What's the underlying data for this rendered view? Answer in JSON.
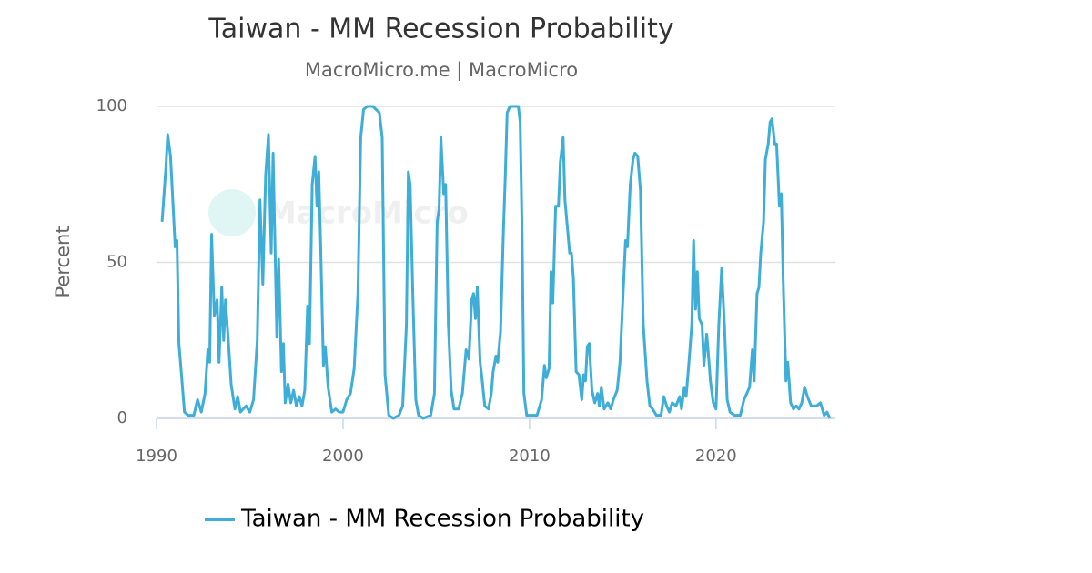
{
  "chart_data": {
    "type": "line",
    "title": "Taiwan - MM Recession Probability",
    "subtitle": "MacroMicro.me | MacroMicro",
    "watermark": "MacroMicro",
    "y_label": "Percent",
    "xlim": [
      1990,
      2026.4
    ],
    "xticks": [
      1990,
      2000,
      2010,
      2020
    ],
    "ylim": [
      0,
      100
    ],
    "yticks": [
      0,
      50,
      100
    ],
    "grid": true,
    "legend": "bottom",
    "series": [
      {
        "name": "Taiwan - MM Recession Probability",
        "color": "#3eaed8",
        "x": [
          1990.3,
          1990.5,
          1990.6,
          1990.75,
          1991.0,
          1991.1,
          1991.2,
          1991.35,
          1991.5,
          1991.7,
          1992.0,
          1992.2,
          1992.4,
          1992.6,
          1992.75,
          1992.85,
          1992.95,
          1993.1,
          1993.25,
          1993.35,
          1993.5,
          1993.6,
          1993.7,
          1993.85,
          1994.0,
          1994.2,
          1994.35,
          1994.5,
          1994.8,
          1995.0,
          1995.2,
          1995.4,
          1995.55,
          1995.7,
          1995.85,
          1996.0,
          1996.15,
          1996.25,
          1996.45,
          1996.55,
          1996.7,
          1996.8,
          1996.9,
          1997.05,
          1997.2,
          1997.35,
          1997.5,
          1997.65,
          1997.8,
          1997.95,
          1998.1,
          1998.2,
          1998.35,
          1998.5,
          1998.6,
          1998.7,
          1998.8,
          1998.95,
          1999.05,
          1999.2,
          1999.4,
          1999.6,
          1999.8,
          2000.0,
          2000.2,
          2000.4,
          2000.6,
          2000.8,
          2000.95,
          2001.1,
          2001.3,
          2001.6,
          2001.95,
          2002.1,
          2002.25,
          2002.45,
          2002.7,
          2003.0,
          2003.2,
          2003.4,
          2003.5,
          2003.6,
          2003.75,
          2003.9,
          2004.05,
          2004.3,
          2004.7,
          2004.9,
          2005.05,
          2005.15,
          2005.25,
          2005.4,
          2005.5,
          2005.65,
          2005.8,
          2005.95,
          2006.2,
          2006.4,
          2006.6,
          2006.75,
          2006.9,
          2007.0,
          2007.1,
          2007.2,
          2007.35,
          2007.45,
          2007.6,
          2007.8,
          2007.95,
          2008.05,
          2008.2,
          2008.3,
          2008.45,
          2008.6,
          2008.7,
          2008.8,
          2008.95,
          2009.4,
          2009.5,
          2009.6,
          2009.7,
          2009.85,
          2010.0,
          2010.4,
          2010.65,
          2010.8,
          2010.9,
          2011.05,
          2011.15,
          2011.25,
          2011.4,
          2011.55,
          2011.65,
          2011.8,
          2011.9,
          2012.05,
          2012.15,
          2012.25,
          2012.35,
          2012.5,
          2012.65,
          2012.8,
          2012.9,
          2013.0,
          2013.1,
          2013.2,
          2013.35,
          2013.5,
          2013.65,
          2013.75,
          2013.85,
          2014.0,
          2014.2,
          2014.35,
          2014.5,
          2014.7,
          2014.85,
          2015.0,
          2015.15,
          2015.25,
          2015.4,
          2015.55,
          2015.65,
          2015.8,
          2015.95,
          2016.1,
          2016.3,
          2016.45,
          2016.6,
          2016.8,
          2017.05,
          2017.2,
          2017.35,
          2017.5,
          2017.65,
          2017.85,
          2018.05,
          2018.15,
          2018.3,
          2018.4,
          2018.55,
          2018.7,
          2018.8,
          2018.9,
          2019.0,
          2019.1,
          2019.25,
          2019.35,
          2019.5,
          2019.6,
          2019.7,
          2019.85,
          2020.0,
          2020.15,
          2020.3,
          2020.45,
          2020.6,
          2020.75,
          2021.0,
          2021.3,
          2021.5,
          2021.65,
          2021.8,
          2021.95,
          2022.05,
          2022.2,
          2022.3,
          2022.4,
          2022.55,
          2022.65,
          2022.8,
          2022.9,
          2023.0,
          2023.15,
          2023.25,
          2023.4,
          2023.5,
          2023.6,
          2023.75,
          2023.85,
          2024.0,
          2024.15,
          2024.3,
          2024.45,
          2024.6,
          2024.75,
          2024.9,
          2025.1,
          2025.4,
          2025.6,
          2025.8,
          2025.95,
          2026.1
        ],
        "values": [
          63,
          80,
          91,
          84,
          55,
          57,
          24,
          13,
          2,
          1,
          1,
          6,
          2,
          8,
          22,
          18,
          59,
          33,
          38,
          18,
          42,
          25,
          38,
          25,
          11,
          3,
          7,
          2,
          4,
          2,
          6,
          25,
          70,
          43,
          78,
          91,
          53,
          85,
          26,
          51,
          15,
          24,
          5,
          11,
          5,
          9,
          4,
          7,
          4,
          9,
          36,
          24,
          75,
          84,
          68,
          79,
          55,
          17,
          23,
          10,
          2,
          3,
          2,
          2,
          6,
          8,
          16,
          40,
          90,
          99,
          100,
          100,
          98,
          90,
          14,
          1,
          0,
          1,
          4,
          30,
          79,
          75,
          38,
          6,
          1,
          0,
          1,
          8,
          63,
          67,
          90,
          72,
          75,
          30,
          9,
          3,
          3,
          8,
          22,
          19,
          38,
          40,
          32,
          42,
          18,
          13,
          4,
          3,
          8,
          15,
          20,
          18,
          28,
          60,
          77,
          98,
          100,
          100,
          95,
          60,
          8,
          1,
          1,
          1,
          6,
          17,
          13,
          16,
          47,
          37,
          68,
          68,
          82,
          90,
          70,
          60,
          53,
          53,
          45,
          15,
          14,
          6,
          14,
          12,
          23,
          24,
          9,
          5,
          8,
          4,
          10,
          3,
          5,
          3,
          6,
          9,
          18,
          38,
          57,
          55,
          75,
          83,
          85,
          84,
          73,
          30,
          12,
          4,
          3,
          1,
          1,
          7,
          4,
          2,
          5,
          4,
          7,
          3,
          10,
          7,
          18,
          30,
          57,
          35,
          47,
          32,
          30,
          17,
          27,
          20,
          12,
          5,
          3,
          30,
          48,
          30,
          6,
          2,
          1,
          1,
          6,
          8,
          10,
          22,
          12,
          40,
          42,
          53,
          63,
          83,
          88,
          95,
          96,
          88,
          88,
          68,
          72,
          45,
          12,
          18,
          5,
          3,
          4,
          3,
          5,
          10,
          7,
          4,
          4,
          5,
          1,
          2,
          0
        ]
      }
    ]
  }
}
